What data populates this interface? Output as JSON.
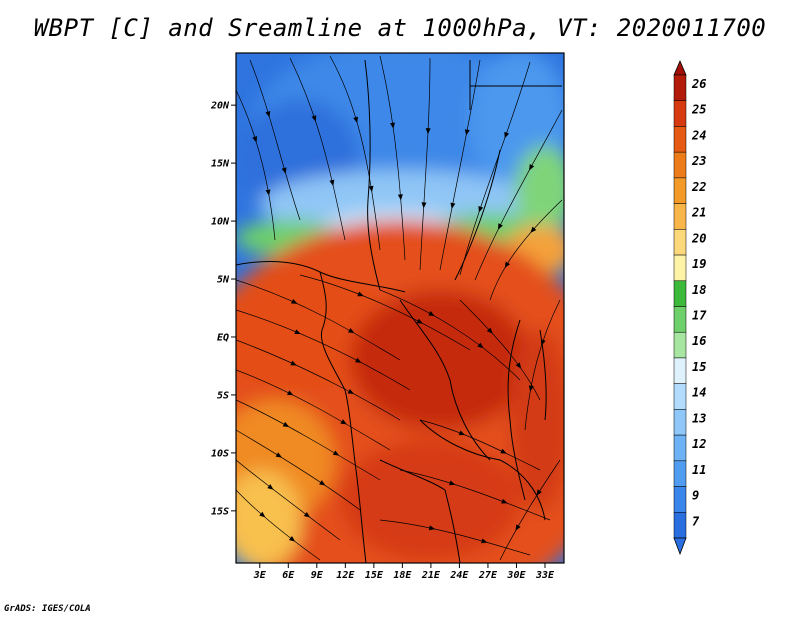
{
  "title": "WBPT [C] and Sreamline at 1000hPa, VT: 2020011700",
  "credit": "GrADS: IGES/COLA",
  "chart_data": {
    "type": "heatmap",
    "field": "WBPT [C]",
    "overlay": "streamline",
    "x_ticks": [
      "3E",
      "6E",
      "9E",
      "12E",
      "15E",
      "18E",
      "21E",
      "24E",
      "27E",
      "30E",
      "33E"
    ],
    "x_tick_values": [
      3,
      6,
      9,
      12,
      15,
      18,
      21,
      24,
      27,
      30,
      33
    ],
    "y_ticks": [
      "20N",
      "15N",
      "10N",
      "5N",
      "EQ",
      "5S",
      "10S",
      "15S"
    ],
    "y_tick_values": [
      20,
      15,
      10,
      5,
      0,
      -5,
      -10,
      -15
    ],
    "xlim": [
      0.5,
      35
    ],
    "ylim": [
      -19.5,
      24.5
    ],
    "colorbar": {
      "labels": [
        "7",
        "9",
        "11",
        "12",
        "13",
        "14",
        "15",
        "16",
        "17",
        "18",
        "19",
        "20",
        "21",
        "22",
        "23",
        "24",
        "25",
        "26"
      ],
      "colors": [
        "#2a6fe0",
        "#3b86ea",
        "#4f9cf0",
        "#6cb2f5",
        "#8ec7f8",
        "#b3dbfb",
        "#dff1fb",
        "#a8e5a0",
        "#6dd06a",
        "#3cb83a",
        "#fff3a8",
        "#fbd97a",
        "#f8b64a",
        "#f49a28",
        "#ef7c1a",
        "#e65a14",
        "#d53a10",
        "#b21a0a"
      ],
      "under_color": "#2a6fe0",
      "over_color": "#a01008"
    }
  }
}
